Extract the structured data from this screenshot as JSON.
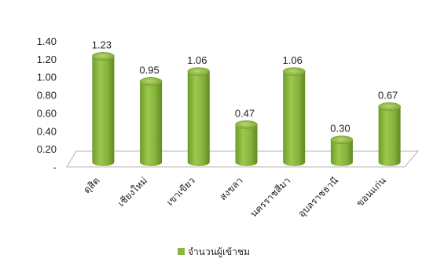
{
  "chart_data": {
    "type": "bar",
    "categories": [
      "ดุสิต",
      "เชียงใหม่",
      "เขาเขียว",
      "สงขลา",
      "นครราชสีมา",
      "อุบลราชธานี",
      "ขอนแก่น"
    ],
    "series": [
      {
        "name": "จำนวนผู้เข้าชม",
        "values": [
          1.23,
          0.95,
          1.06,
          0.47,
          1.06,
          0.3,
          0.67
        ],
        "data_labels": [
          "1.23",
          "0.95",
          "1.06",
          "0.47",
          "1.06",
          "0.30",
          "0.67"
        ],
        "color": "#8ab63f"
      }
    ],
    "yticks": [
      "-",
      "0.20",
      "0.40",
      "0.60",
      "0.80",
      "1.00",
      "1.20",
      "1.40"
    ],
    "ylim": [
      0,
      1.4
    ],
    "grid": false,
    "legend": "bottom"
  }
}
